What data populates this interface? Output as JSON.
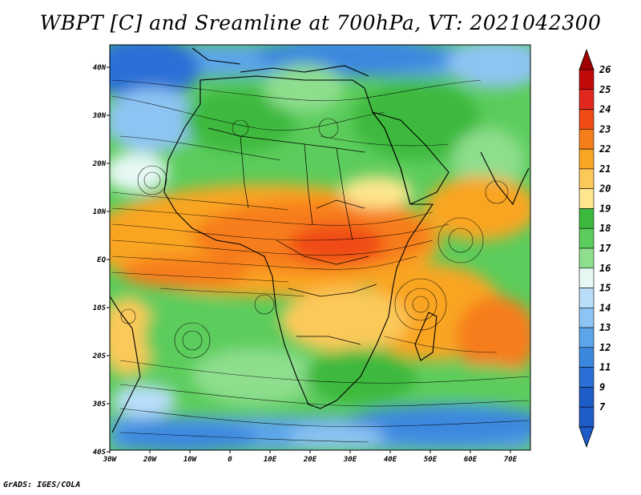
{
  "title": "WBPT [C] and Sreamline at 700hPa, VT: 2021042300",
  "credit": "GrADS: IGES/COLA",
  "map": {
    "lon_labels": [
      "30W",
      "20W",
      "10W",
      "0",
      "10E",
      "20E",
      "30E",
      "40E",
      "50E",
      "60E",
      "70E"
    ],
    "lat_labels": [
      "40N",
      "30N",
      "20N",
      "10N",
      "EQ",
      "10S",
      "20S",
      "30S",
      "40S"
    ]
  },
  "colorbar": {
    "labels": [
      "26",
      "25",
      "24",
      "23",
      "22",
      "21",
      "20",
      "19",
      "18",
      "17",
      "16",
      "15",
      "14",
      "13",
      "12",
      "11",
      "9",
      "7"
    ],
    "colors": {
      "c26": "#a00000",
      "c25": "#c00a0a",
      "c24": "#e0281e",
      "c23": "#f04b14",
      "c22": "#f77d1a",
      "c21": "#f9a524",
      "c20": "#fbc95a",
      "c19": "#fde68e",
      "c18": "#3cb93c",
      "c17": "#5ccc5c",
      "c16": "#8ede8e",
      "c15": "#e6f8f4",
      "c14": "#b9defa",
      "c13": "#8ec4f3",
      "c12": "#5ca5e9",
      "c11": "#3c88df",
      "c9": "#2a6fd6",
      "c7": "#1e5cc8"
    }
  }
}
